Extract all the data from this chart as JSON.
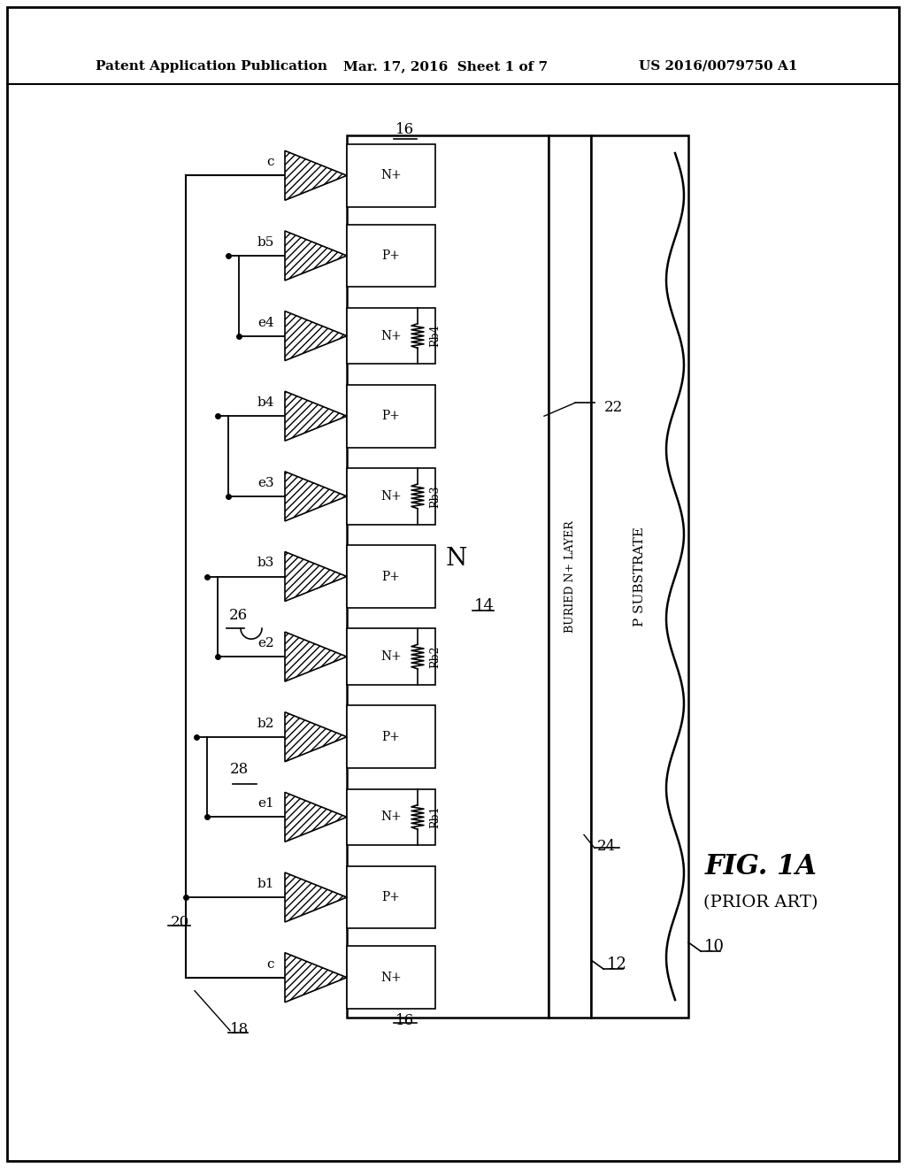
{
  "title_left": "Patent Application Publication",
  "title_mid": "Mar. 17, 2016  Sheet 1 of 7",
  "title_right": "US 2016/0079750 A1",
  "fig_label": "FIG. 1A",
  "fig_sublabel": "(PRIOR ART)",
  "bg_color": "#ffffff",
  "line_color": "#000000",
  "row_order": [
    "c_top",
    "b5",
    "e4",
    "b4",
    "e3",
    "b3",
    "e2",
    "b2",
    "e1",
    "b1",
    "c_bot"
  ],
  "row_types": [
    "N+",
    "P+",
    "N+",
    "P+",
    "N+",
    "P+",
    "N+",
    "P+",
    "N+",
    "P+",
    "N+"
  ],
  "row_labels": [
    "c",
    "b5",
    "e4",
    "b4",
    "e3",
    "b3",
    "e2",
    "b2",
    "e1",
    "b1",
    "c"
  ],
  "rb_rows": [
    2,
    4,
    6,
    8
  ],
  "rb_labels": [
    "Rb4",
    "Rb3",
    "Rb2",
    "Rb1"
  ],
  "ref_numbers": {
    "ref10": "10",
    "ref12": "12",
    "ref14": "14",
    "ref16": "16",
    "ref18": "18",
    "ref20": "20",
    "ref22": "22",
    "ref24": "24",
    "ref26": "26",
    "ref28": "28"
  }
}
